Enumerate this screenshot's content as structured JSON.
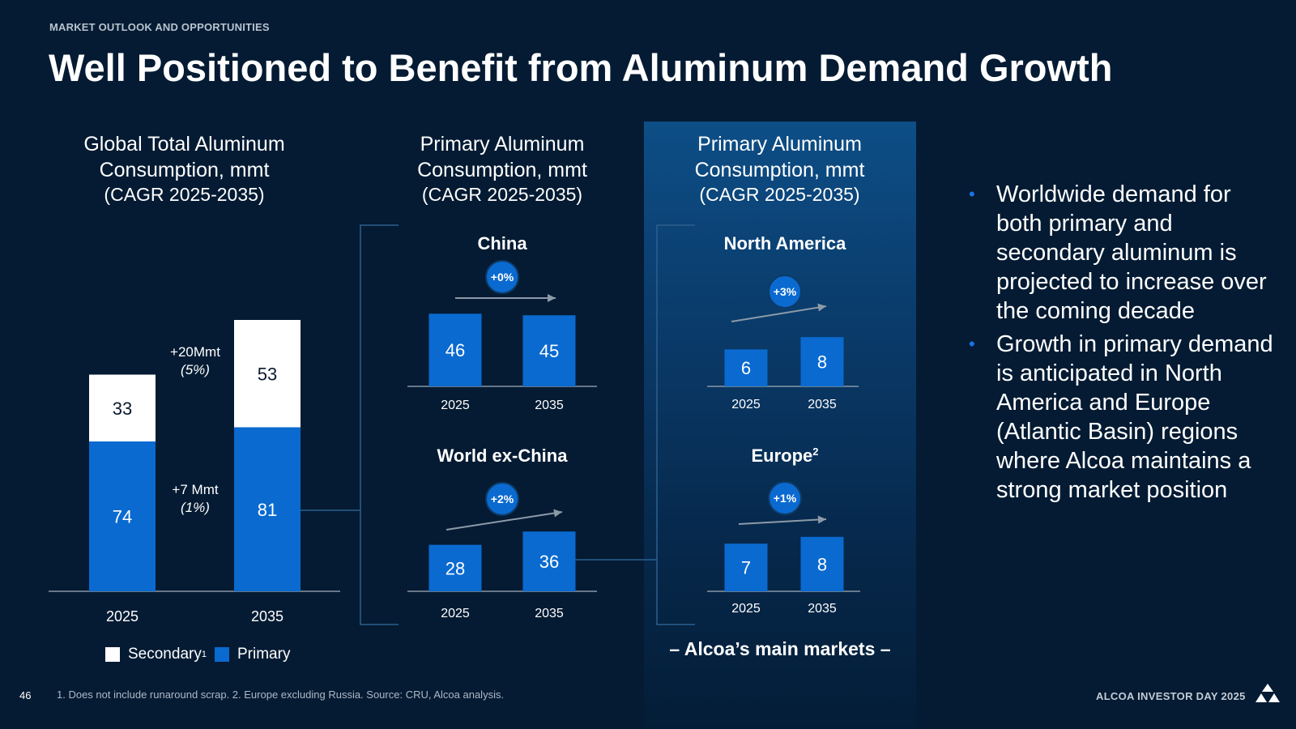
{
  "header": {
    "section_label": "MARKET OUTLOOK AND OPPORTUNITIES",
    "title": "Well Positioned to Benefit from Aluminum Demand Growth"
  },
  "colors": {
    "background": "#041b33",
    "primary": "#0a6ad0",
    "secondary": "#ffffff",
    "accent_bullet": "#1a73e8",
    "arrow": "#8c9aa8",
    "bracket": "#2d5f8e"
  },
  "global_chart": {
    "title_line1": "Global Total Aluminum",
    "title_line2": "Consumption, mmt",
    "title_line3": "(CAGR 2025-2035)",
    "annotation_secondary_line1": "+20Mmt",
    "annotation_secondary_line2": "(5%)",
    "annotation_primary_line1": "+7 Mmt",
    "annotation_primary_line2": "(1%)",
    "legend_secondary": "Secondary",
    "legend_secondary_sup": "1",
    "legend_primary": "Primary"
  },
  "primary_chart_left": {
    "title_line1": "Primary Aluminum",
    "title_line2": "Consumption, mmt",
    "title_line3": "(CAGR 2025-2035)"
  },
  "primary_chart_right": {
    "title_line1": "Primary Aluminum",
    "title_line2": "Consumption, mmt",
    "title_line3": "(CAGR 2025-2035)",
    "caption": "– Alcoa’s main markets –"
  },
  "chart_data": [
    {
      "type": "bar",
      "stacked": true,
      "title": "Global Total Aluminum Consumption, mmt (CAGR 2025-2035)",
      "categories": [
        "2025",
        "2035"
      ],
      "series": [
        {
          "name": "Primary",
          "values": [
            74,
            81
          ]
        },
        {
          "name": "Secondary",
          "values": [
            33,
            53
          ]
        }
      ],
      "annotations": [
        "+20Mmt (5%)",
        "+7 Mmt (1%)"
      ],
      "legend": "bottom"
    },
    {
      "type": "bar",
      "title": "China",
      "categories": [
        "2025",
        "2035"
      ],
      "values": [
        46,
        45
      ],
      "cagr": "+0%"
    },
    {
      "type": "bar",
      "title": "World ex-China",
      "categories": [
        "2025",
        "2035"
      ],
      "values": [
        28,
        36
      ],
      "cagr": "+2%"
    },
    {
      "type": "bar",
      "title": "North America",
      "categories": [
        "2025",
        "2035"
      ],
      "values": [
        6,
        8
      ],
      "cagr": "+3%"
    },
    {
      "type": "bar",
      "title": "Europe",
      "title_sup": "2",
      "categories": [
        "2025",
        "2035"
      ],
      "values": [
        7,
        8
      ],
      "cagr": "+1%"
    }
  ],
  "bullets": [
    "Worldwide demand for both primary and secondary aluminum is projected to increase over the coming decade",
    "Growth in primary demand is anticipated in North America and Europe (Atlantic Basin) regions where Alcoa maintains a strong market position"
  ],
  "footer": {
    "page_number": "46",
    "footnote": "1. Does not include runaround scrap. 2. Europe excluding Russia. Source: CRU, Alcoa analysis.",
    "brand": "ALCOA INVESTOR DAY 2025",
    "logo_icon": "alcoa-logo-icon"
  }
}
